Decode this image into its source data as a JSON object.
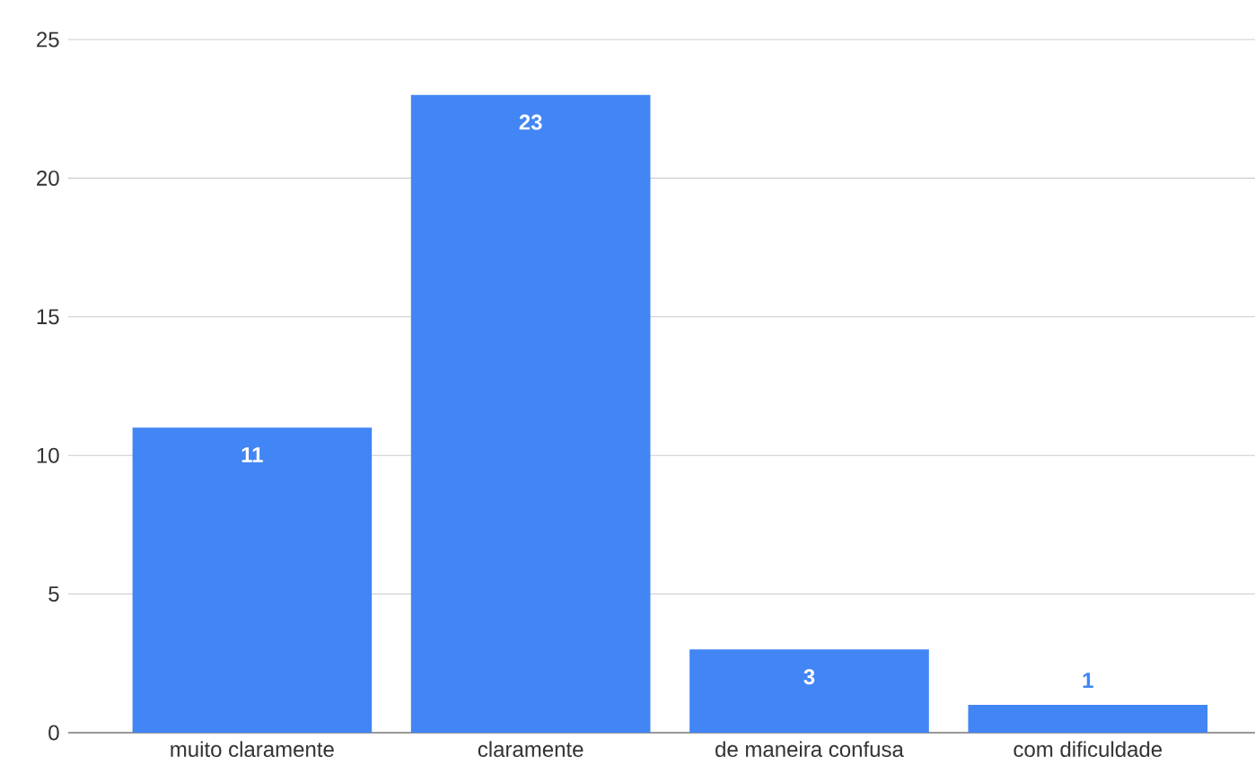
{
  "chart_data": {
    "type": "bar",
    "categories": [
      "muito claramente",
      "claramente",
      "de maneira confusa",
      "com dificuldade"
    ],
    "values": [
      11,
      23,
      3,
      1
    ],
    "color": "#4285f4",
    "ylim": [
      0,
      25
    ],
    "yticks": [
      0,
      5,
      10,
      15,
      20,
      25
    ],
    "grid": "y",
    "data_labels": true
  }
}
